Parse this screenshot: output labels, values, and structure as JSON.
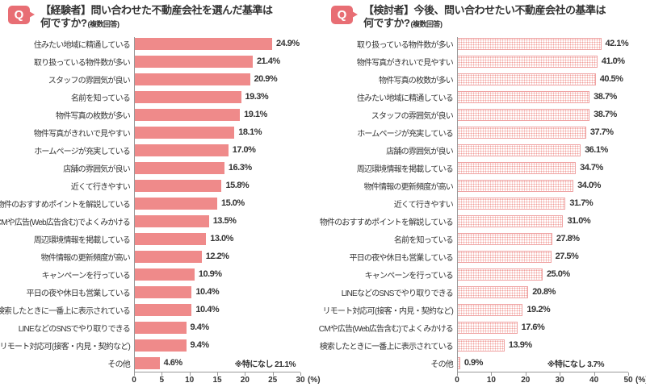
{
  "page": {
    "q_badge": "Q"
  },
  "colors": {
    "badge": "#E86E74",
    "bar_solid": "#EF8A8A",
    "bar_dotted_dot": "#F2A19D",
    "bar_dotted_border": "#EFA3A3",
    "axis": "#999999",
    "text": "#333333"
  },
  "chart_data": [
    {
      "type": "bar",
      "orientation": "horizontal",
      "bar_style": "solid",
      "title_line1": "【経験者】問い合わせた不動産会社を選んだ基準は",
      "title_line2": "何ですか?",
      "multi_note": "(複数回答)",
      "categories": [
        "住みたい地域に精通している",
        "取り扱っている物件数が多い",
        "スタッフの雰囲気が良い",
        "名前を知っている",
        "物件写真の枚数が多い",
        "物件写真がきれいで見やすい",
        "ホームページが充実している",
        "店舗の雰囲気が良い",
        "近くて行きやすい",
        "物件のおすすめポイントを解説している",
        "CMや広告(Web広告含む)でよくみかける",
        "周辺環境情報を掲載している",
        "物件情報の更新頻度が高い",
        "キャンペーンを行っている",
        "平日の夜や休日も営業している",
        "検索したときに一番上に表示されている",
        "LINEなどのSNSでやり取りできる",
        "リモート対応可(接客・内見・契約など)",
        "その他"
      ],
      "values": [
        24.9,
        21.4,
        20.9,
        19.3,
        19.1,
        18.1,
        17.0,
        16.3,
        15.8,
        15.0,
        13.5,
        13.0,
        12.2,
        10.9,
        10.4,
        10.4,
        9.4,
        9.4,
        4.6
      ],
      "value_suffix": "%",
      "xlim": [
        0,
        30
      ],
      "ticks": [
        0,
        5,
        10,
        15,
        20,
        25,
        30
      ],
      "axis_unit": "(%)",
      "footnote": "※特になし 21.1%"
    },
    {
      "type": "bar",
      "orientation": "horizontal",
      "bar_style": "dotted",
      "title_line1": "【検討者】今後、問い合わせたい不動産会社の基準は",
      "title_line2": "何ですか?",
      "multi_note": "(複数回答)",
      "categories": [
        "取り扱っている物件数が多い",
        "物件写真がきれいで見やすい",
        "物件写真の枚数が多い",
        "住みたい地域に精通している",
        "スタッフの雰囲気が良い",
        "ホームページが充実している",
        "店舗の雰囲気が良い",
        "周辺環境情報を掲載している",
        "物件情報の更新頻度が高い",
        "近くて行きやすい",
        "物件のおすすめポイントを解説している",
        "名前を知っている",
        "平日の夜や休日も営業している",
        "キャンペーンを行っている",
        "LINEなどのSNSでやり取りできる",
        "リモート対応可(接客・内見・契約など)",
        "CMや広告(Web広告含む)でよくみかける",
        "検索したときに一番上に表示されている",
        "その他"
      ],
      "values": [
        42.1,
        41.0,
        40.5,
        38.7,
        38.7,
        37.7,
        36.1,
        34.7,
        34.0,
        31.7,
        31.0,
        27.8,
        27.5,
        25.0,
        20.8,
        19.2,
        17.6,
        13.9,
        0.9
      ],
      "value_suffix": "%",
      "xlim": [
        0,
        50
      ],
      "ticks": [
        0,
        10,
        20,
        30,
        40,
        50
      ],
      "axis_unit": "(%)",
      "footnote": "※特になし 3.7%"
    }
  ]
}
